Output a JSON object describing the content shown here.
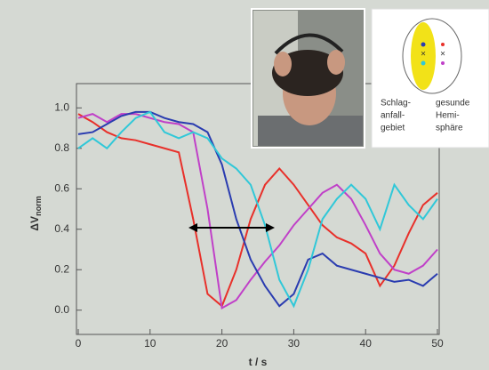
{
  "chart_data": {
    "type": "line",
    "y_label": "ΔV",
    "y_label_sub": "norm",
    "x_label": "t / s",
    "x": [
      0,
      2,
      4,
      6,
      8,
      10,
      12,
      14,
      16,
      18,
      20,
      22,
      24,
      26,
      28,
      30,
      32,
      34,
      36,
      38,
      40,
      42,
      44,
      46,
      48,
      50
    ],
    "series": [
      {
        "color": "#e8302a",
        "values": [
          0.97,
          0.93,
          0.88,
          0.85,
          0.84,
          0.82,
          0.8,
          0.78,
          0.45,
          0.08,
          0.02,
          0.2,
          0.45,
          0.62,
          0.7,
          0.62,
          0.52,
          0.42,
          0.36,
          0.33,
          0.28,
          0.12,
          0.22,
          0.38,
          0.52,
          0.58
        ]
      },
      {
        "color": "#c040c8",
        "values": [
          0.95,
          0.97,
          0.93,
          0.97,
          0.97,
          0.95,
          0.93,
          0.92,
          0.88,
          0.5,
          0.01,
          0.05,
          0.15,
          0.24,
          0.32,
          0.42,
          0.5,
          0.58,
          0.62,
          0.55,
          0.42,
          0.28,
          0.2,
          0.18,
          0.22,
          0.3
        ]
      },
      {
        "color": "#2a3cb0",
        "values": [
          0.87,
          0.88,
          0.92,
          0.96,
          0.98,
          0.98,
          0.95,
          0.93,
          0.92,
          0.88,
          0.72,
          0.45,
          0.25,
          0.12,
          0.02,
          0.08,
          0.25,
          0.28,
          0.22,
          0.2,
          0.18,
          0.16,
          0.14,
          0.15,
          0.12,
          0.18
        ]
      },
      {
        "color": "#30c8d8",
        "values": [
          0.8,
          0.85,
          0.8,
          0.88,
          0.95,
          0.98,
          0.88,
          0.85,
          0.88,
          0.85,
          0.75,
          0.7,
          0.62,
          0.42,
          0.15,
          0.02,
          0.2,
          0.45,
          0.55,
          0.62,
          0.55,
          0.4,
          0.62,
          0.52,
          0.45,
          0.55
        ]
      }
    ],
    "xlim": [
      0,
      50
    ],
    "xticks": [
      0,
      10,
      20,
      30,
      40,
      50
    ],
    "ylim": [
      -0.12,
      1.12
    ],
    "yticks": [
      {
        "value": 0,
        "label": "0.0"
      },
      {
        "value": 0.2,
        "label": "0.2"
      },
      {
        "value": 0.4,
        "label": "0.4"
      },
      {
        "value": 0.6,
        "label": "0.6"
      },
      {
        "value": 0.8,
        "label": "0.8"
      },
      {
        "value": 1,
        "label": "1.0"
      }
    ],
    "inset_left": [
      "Schlag-",
      "anfall-",
      "gebiet"
    ],
    "inset_right": [
      "gesunde",
      "Hemi-",
      "sphäre"
    ]
  }
}
